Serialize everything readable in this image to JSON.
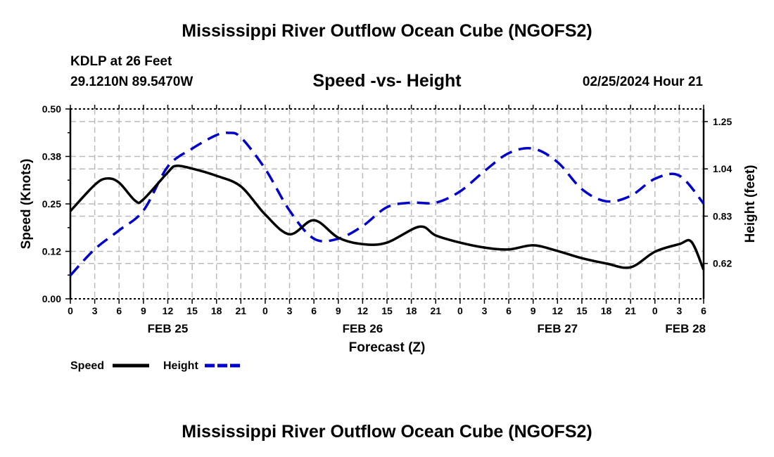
{
  "header": {
    "title": "Mississippi River Outflow Ocean Cube (NGOFS2)",
    "station": "KDLP at 26 Feet",
    "coords": "29.1210N  89.5470W",
    "subtitle": "Speed -vs- Height",
    "datetime": "02/25/2024 Hour 21"
  },
  "footer": {
    "title": "Mississippi River Outflow Ocean Cube (NGOFS2)"
  },
  "colors": {
    "speed": "#000000",
    "height": "#0000cc",
    "grid": "#bbbbbb"
  },
  "chart_data": {
    "type": "line",
    "title": "Speed -vs- Height",
    "xlabel": "Forecast (Z)",
    "ylabel": "Speed (Knots)",
    "y2label": "Height (feet)",
    "xlim": [
      0,
      78
    ],
    "ylim": [
      0,
      0.5
    ],
    "y2lim": [
      0.463,
      1.306
    ],
    "x_ticks": [
      0,
      3,
      6,
      9,
      12,
      15,
      18,
      21,
      24,
      27,
      30,
      33,
      36,
      39,
      42,
      45,
      48,
      51,
      54,
      57,
      60,
      63,
      66,
      69,
      72,
      75,
      78
    ],
    "x_tick_labels": [
      "0",
      "3",
      "6",
      "9",
      "12",
      "15",
      "18",
      "21",
      "0",
      "3",
      "6",
      "9",
      "12",
      "15",
      "18",
      "21",
      "0",
      "3",
      "6",
      "9",
      "12",
      "15",
      "18",
      "21",
      "0",
      "3",
      "6"
    ],
    "date_labels": [
      {
        "x": 12,
        "label": "FEB 25"
      },
      {
        "x": 36,
        "label": "FEB 26"
      },
      {
        "x": 60,
        "label": "FEB 27"
      },
      {
        "x": 78,
        "label": "FEB 28"
      }
    ],
    "y_ticks": [
      0,
      0.125,
      0.25,
      0.375,
      0.5
    ],
    "y_tick_labels": [
      "0.00",
      "0.12",
      "0.25",
      "0.38",
      "0.50"
    ],
    "y2_ticks": [
      0.62,
      0.83,
      1.04,
      1.25
    ],
    "y2_tick_labels": [
      "0.62",
      "0.83",
      "1.04",
      "1.25"
    ],
    "grid": true,
    "legend": {
      "position": "bottom-left",
      "entries": [
        "Speed",
        "Height"
      ]
    },
    "x": [
      0,
      3,
      4.5,
      6,
      8,
      9,
      12,
      13,
      15,
      18,
      21,
      24,
      27,
      30,
      33,
      36,
      39,
      43,
      45,
      48,
      51,
      54,
      57,
      60,
      63,
      66,
      69,
      72,
      75,
      76.5,
      78
    ],
    "series": [
      {
        "name": "Speed",
        "axis": "left",
        "style": "solid",
        "x": [
          0,
          3,
          4.5,
          6,
          8,
          9,
          12,
          13,
          15,
          18,
          21,
          24,
          27,
          30,
          33,
          36,
          39,
          43,
          45,
          48,
          51,
          54,
          57,
          60,
          63,
          66,
          69,
          72,
          75,
          76.5,
          78
        ],
        "values": [
          0.231,
          0.3,
          0.317,
          0.306,
          0.258,
          0.262,
          0.333,
          0.35,
          0.343,
          0.324,
          0.296,
          0.222,
          0.17,
          0.207,
          0.161,
          0.144,
          0.148,
          0.19,
          0.167,
          0.148,
          0.135,
          0.13,
          0.141,
          0.126,
          0.107,
          0.093,
          0.083,
          0.124,
          0.144,
          0.15,
          0.076
        ]
      },
      {
        "name": "Height",
        "axis": "right",
        "style": "dashed",
        "x": [
          0,
          3,
          6,
          9,
          12,
          15,
          18,
          19.5,
          21,
          24,
          27,
          30,
          33,
          36,
          39,
          42,
          45,
          48,
          51,
          54,
          57,
          60,
          63,
          66,
          69,
          72,
          75,
          78
        ],
        "values": [
          0.567,
          0.683,
          0.767,
          0.855,
          1.05,
          1.13,
          1.19,
          1.2,
          1.18,
          1.04,
          0.855,
          0.73,
          0.73,
          0.786,
          0.87,
          0.89,
          0.89,
          0.94,
          1.03,
          1.11,
          1.13,
          1.07,
          0.95,
          0.896,
          0.92,
          0.996,
          1.01,
          0.886
        ]
      }
    ]
  }
}
